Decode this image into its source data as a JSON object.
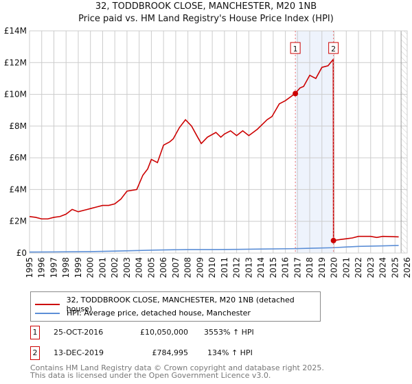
{
  "chart_data": {
    "type": "line",
    "title": "32, TODDBROOK CLOSE, MANCHESTER, M20 1NB",
    "subtitle": "Price paid vs. HM Land Registry's House Price Index (HPI)",
    "xlim": [
      1995,
      2026
    ],
    "ylim": [
      0,
      14000000
    ],
    "y_ticks": [
      {
        "v": 0,
        "label": "£0"
      },
      {
        "v": 2000000,
        "label": "£2M"
      },
      {
        "v": 4000000,
        "label": "£4M"
      },
      {
        "v": 6000000,
        "label": "£6M"
      },
      {
        "v": 8000000,
        "label": "£8M"
      },
      {
        "v": 10000000,
        "label": "£10M"
      },
      {
        "v": 12000000,
        "label": "£12M"
      },
      {
        "v": 14000000,
        "label": "£14M"
      }
    ],
    "x_ticks": [
      "1995",
      "1996",
      "1997",
      "1998",
      "1999",
      "2000",
      "2001",
      "2002",
      "2003",
      "2004",
      "2005",
      "2006",
      "2007",
      "2008",
      "2009",
      "2010",
      "2011",
      "2012",
      "2013",
      "2014",
      "2015",
      "2016",
      "2017",
      "2018",
      "2019",
      "2020",
      "2021",
      "2022",
      "2023",
      "2024",
      "2025",
      "2026"
    ],
    "grid": true,
    "series": [
      {
        "name": "32, TODDBROOK CLOSE, MANCHESTER, M20 1NB (detached house)",
        "color": "#cc0000",
        "x": [
          1995,
          1995.5,
          1996,
          1996.5,
          1997,
          1997.5,
          1998,
          1998.5,
          1999,
          1999.5,
          2000,
          2000.5,
          2001,
          2001.5,
          2002,
          2002.5,
          2003,
          2003.8,
          2004.3,
          2004.7,
          2005,
          2005.5,
          2006,
          2006.5,
          2006.8,
          2007.3,
          2007.8,
          2008.3,
          2008.8,
          2009.1,
          2009.6,
          2010.3,
          2010.7,
          2011,
          2011.5,
          2012,
          2012.5,
          2013,
          2013.7,
          2014.5,
          2014.9,
          2015.5,
          2016,
          2016.8,
          2017.2,
          2017.5,
          2018,
          2018.5,
          2019,
          2019.5,
          2019.93,
          2019.95,
          2020.5,
          2021,
          2021.5,
          2022,
          2023,
          2023.5,
          2024,
          2025.3
        ],
        "y": [
          2.3,
          2.25,
          2.15,
          2.15,
          2.25,
          2.3,
          2.45,
          2.75,
          2.6,
          2.7,
          2.8,
          2.9,
          3.0,
          3.0,
          3.1,
          3.4,
          3.9,
          4.0,
          4.9,
          5.3,
          5.9,
          5.7,
          6.8,
          7.0,
          7.2,
          7.9,
          8.4,
          8.0,
          7.3,
          6.9,
          7.3,
          7.6,
          7.3,
          7.5,
          7.7,
          7.4,
          7.7,
          7.4,
          7.8,
          8.4,
          8.6,
          9.4,
          9.6,
          10.05,
          10.4,
          10.5,
          11.2,
          11.0,
          11.7,
          11.8,
          12.2,
          0.785,
          0.85,
          0.9,
          0.95,
          1.05,
          1.05,
          0.98,
          1.05,
          1.02
        ]
      },
      {
        "name": "HPI: Average price, detached house, Manchester",
        "color": "#5b8ed6",
        "x": [
          1995,
          1997,
          2000,
          2002,
          2004,
          2005,
          2008,
          2010,
          2012,
          2014,
          2016.8,
          2018,
          2019.9,
          2021,
          2022,
          2024,
          2025.3
        ],
        "y": [
          0.06,
          0.07,
          0.09,
          0.12,
          0.16,
          0.18,
          0.22,
          0.22,
          0.23,
          0.25,
          0.275,
          0.3,
          0.335,
          0.38,
          0.42,
          0.45,
          0.48
        ]
      }
    ],
    "y_units": "millions GBP",
    "shaded_range": [
      2016.82,
      2019.95
    ],
    "forecast_from": 2025.5,
    "annotations": [
      {
        "label": "1",
        "x": 2016.82,
        "y": 10.05
      },
      {
        "label": "2",
        "x": 2019.95,
        "y": 0.785
      }
    ],
    "legend": "below"
  },
  "legend": {
    "items": [
      "32, TODDBROOK CLOSE, MANCHESTER, M20 1NB (detached house)",
      "HPI: Average price, detached house, Manchester"
    ]
  },
  "transactions": [
    {
      "num": "1",
      "date": "25-OCT-2016",
      "price": "£10,050,000",
      "hpi": "3553% ↑ HPI"
    },
    {
      "num": "2",
      "date": "13-DEC-2019",
      "price": "£784,995",
      "hpi": "134% ↑ HPI"
    }
  ],
  "footer": [
    "Contains HM Land Registry data © Crown copyright and database right 2025.",
    "This data is licensed under the Open Government Licence v3.0."
  ]
}
